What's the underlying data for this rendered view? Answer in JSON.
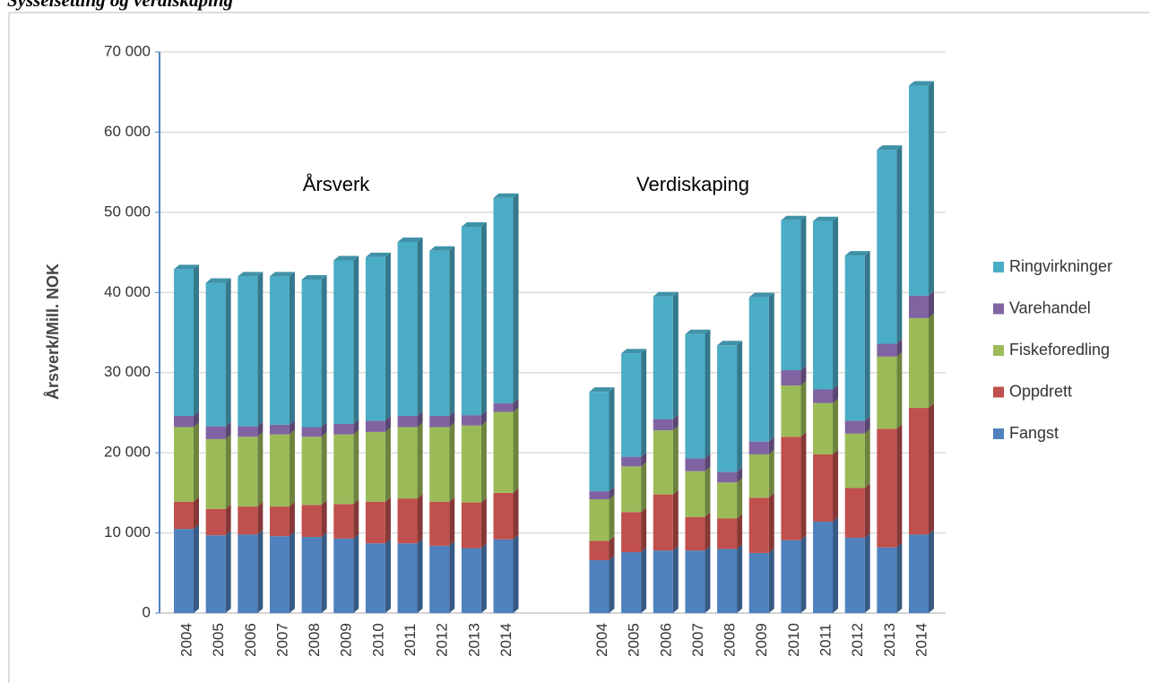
{
  "chart_data": {
    "type": "bar3d_stacked",
    "title": "Sysselsetting og verdiskaping",
    "y_label": "Årsverk/Mill. NOK",
    "annotations": [
      "Årsverk",
      "Verdiskaping"
    ],
    "categories": [
      "2004",
      "2005",
      "2006",
      "2007",
      "2008",
      "2009",
      "2010",
      "2011",
      "2012",
      "2013",
      "2014",
      null,
      null,
      "2004",
      "2005",
      "2006",
      "2007",
      "2008",
      "2009",
      "2010",
      "2011",
      "2012",
      "2013",
      "2014"
    ],
    "series": [
      {
        "name": "Fangst",
        "color": "#4f81bd",
        "values": [
          10500,
          9700,
          9800,
          9600,
          9500,
          9300,
          8700,
          8700,
          8400,
          8100,
          9200,
          null,
          null,
          6600,
          7600,
          7800,
          7800,
          8000,
          7500,
          9100,
          11400,
          9400,
          8200,
          9800
        ]
      },
      {
        "name": "Oppdrett",
        "color": "#c0504d",
        "values": [
          3400,
          3300,
          3500,
          3700,
          4000,
          4300,
          5200,
          5600,
          5500,
          5700,
          5800,
          null,
          null,
          2400,
          5000,
          7000,
          4200,
          3800,
          6900,
          12900,
          8400,
          6200,
          14800,
          15800
        ]
      },
      {
        "name": "Fiskeforedling",
        "color": "#9bbb59",
        "values": [
          9300,
          8700,
          8700,
          9000,
          8500,
          8700,
          8700,
          8900,
          9300,
          9600,
          10100,
          null,
          null,
          5200,
          5700,
          8000,
          5700,
          4500,
          5400,
          6400,
          6400,
          6800,
          9000,
          11200
        ]
      },
      {
        "name": "Varehandel",
        "color": "#8064a2",
        "values": [
          1400,
          1600,
          1300,
          1200,
          1200,
          1300,
          1400,
          1400,
          1400,
          1300,
          1100,
          null,
          null,
          1000,
          1200,
          1400,
          1600,
          1300,
          1600,
          1900,
          1700,
          1600,
          1600,
          2800
        ]
      },
      {
        "name": "Ringvirkninger",
        "color": "#4bacc6",
        "values": [
          18300,
          17900,
          18700,
          18500,
          18400,
          20400,
          20400,
          21700,
          20600,
          23500,
          25600,
          null,
          null,
          12400,
          12900,
          15300,
          15500,
          15800,
          18000,
          18700,
          21000,
          20600,
          24200,
          26200
        ]
      }
    ],
    "ylim": [
      0,
      70000
    ],
    "yticks": [
      {
        "value": 0,
        "label": "0"
      },
      {
        "value": 10000,
        "label": "10 000"
      },
      {
        "value": 20000,
        "label": "20 000"
      },
      {
        "value": 30000,
        "label": "30 000"
      },
      {
        "value": 40000,
        "label": "40 000"
      },
      {
        "value": 50000,
        "label": "50 000"
      },
      {
        "value": 60000,
        "label": "60 000"
      },
      {
        "value": 70000,
        "label": "70 000"
      }
    ],
    "grid": true,
    "legend": "right"
  }
}
